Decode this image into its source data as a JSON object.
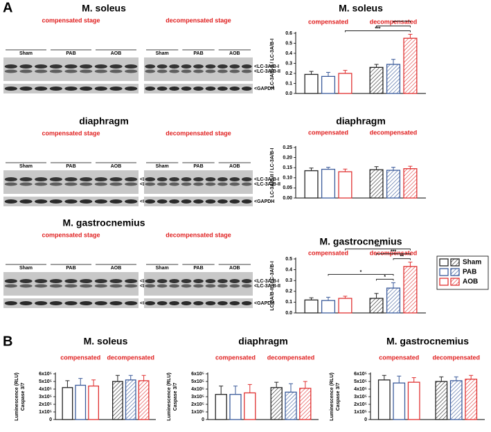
{
  "panels": [
    "A",
    "B"
  ],
  "blots": [
    {
      "title": "M. soleus",
      "panels": [
        {
          "stage": "compensated stage",
          "groups": [
            "Sham",
            "PAB",
            "AOB"
          ]
        },
        {
          "stage": "decompensated stage",
          "groups": [
            "Sham",
            "PAB",
            "AOB"
          ],
          "bands": [
            "<LC-3A/B-I",
            "<LC-3A/B-II"
          ],
          "control": "<GAPDH"
        }
      ]
    },
    {
      "title": "diaphragm",
      "panels": [
        {
          "stage": "compensated stage",
          "groups": [
            "Sham",
            "PAB",
            "AOB"
          ],
          "bands": [
            "<LC-3A/B-I",
            "<LC-3A/B-II"
          ],
          "control": "<GAPDH"
        },
        {
          "stage": "decompensated stage",
          "groups": [
            "Sham",
            "PAB",
            "AOB"
          ],
          "bands": [
            "<LC-3A/B-I",
            "<LC-3A/B-II"
          ],
          "control": "<GAPDH"
        }
      ]
    },
    {
      "title": "M. gastrocnemius",
      "panels": [
        {
          "stage": "compensated stage",
          "groups": [
            "Sham",
            "PAB",
            "AOB"
          ],
          "bands": [
            "<LC-3A/B-I",
            "<LC-3A/B-II"
          ],
          "control": "<GAPDH"
        },
        {
          "stage": "decompensated stage",
          "groups": [
            "Sham",
            "PAB",
            "AOB"
          ],
          "bands": [
            "<LC-3A/B-I",
            "<LC-3A/B-II"
          ],
          "control": "<GAPDH"
        }
      ]
    }
  ],
  "chart_data": [
    {
      "type": "bar",
      "title": "M. soleus",
      "ylabel": [
        "LC-3A/B-II / LC-3A/B-I"
      ],
      "categories": [
        "compensated",
        "decompensated"
      ],
      "hatch": [
        false,
        true
      ],
      "ylim": [
        0,
        0.6
      ],
      "yticks": [
        {
          "value": 0,
          "label": "0.0"
        },
        0.1,
        0.2,
        0.3,
        0.4,
        0.5,
        0.6
      ],
      "series": [
        {
          "color": "#222222",
          "values": [
            0.19,
            0.26
          ],
          "errors": [
            0.03,
            0.03
          ]
        },
        {
          "color": "#3a5a9a",
          "values": [
            0.17,
            0.29
          ],
          "errors": [
            0.04,
            0.05
          ]
        },
        {
          "color": "#e03030",
          "values": [
            0.2,
            0.55
          ],
          "errors": [
            0.03,
            0.04
          ]
        }
      ],
      "brackets": [
        {
          "label": "***",
          "from": [
            0,
            2
          ],
          "to": [
            1,
            2
          ]
        },
        {
          "from": [
            1,
            0
          ],
          "to": [
            1,
            2
          ]
        },
        {
          "from": [
            1,
            1
          ],
          "to": [
            1,
            2
          ]
        }
      ]
    },
    {
      "type": "bar",
      "title": "diaphragm",
      "ylabel": [
        "LC-3A/B-II / LC-3A/B-I"
      ],
      "categories": [
        "compensated",
        "decompensated"
      ],
      "hatch": [
        false,
        true
      ],
      "ylim": [
        0,
        0.25
      ],
      "yticks": [
        {
          "value": 0,
          "label": "0.00"
        },
        0.05,
        {
          "value": 0.1,
          "label": "0.10"
        },
        0.15,
        {
          "value": 0.2,
          "label": "0.20"
        },
        0.25
      ],
      "series": [
        {
          "color": "#222222",
          "values": [
            0.135,
            0.14
          ],
          "errors": [
            0.013,
            0.015
          ]
        },
        {
          "color": "#3a5a9a",
          "values": [
            0.142,
            0.137
          ],
          "errors": [
            0.01,
            0.015
          ]
        },
        {
          "color": "#e03030",
          "values": [
            0.13,
            0.145
          ],
          "errors": [
            0.013,
            0.012
          ]
        }
      ]
    },
    {
      "type": "bar",
      "title": "M. gastrocnemius",
      "ylabel": [
        "LC-3A/B-II / LC-3A/B-I"
      ],
      "categories": [
        "compensated",
        "decompensated"
      ],
      "hatch": [
        false,
        true
      ],
      "ylim": [
        0,
        0.5
      ],
      "yticks": [
        {
          "value": 0,
          "label": "0.0"
        },
        0.1,
        0.2,
        0.3,
        0.4,
        0.5
      ],
      "legend": "right",
      "series": [
        {
          "name": "Sham",
          "color": "#222222",
          "values": [
            0.12,
            0.135
          ],
          "errors": [
            0.02,
            0.045
          ]
        },
        {
          "name": "PAB",
          "color": "#3a5a9a",
          "values": [
            0.115,
            0.23
          ],
          "errors": [
            0.03,
            0.05
          ]
        },
        {
          "name": "AOB",
          "color": "#e03030",
          "values": [
            0.135,
            0.43
          ],
          "errors": [
            0.02,
            0.04
          ]
        }
      ],
      "brackets": [
        {
          "label": "*",
          "from": [
            1,
            0
          ],
          "to": [
            1,
            1
          ]
        },
        {
          "label": "*",
          "from": [
            0,
            1
          ],
          "to": [
            1,
            1
          ]
        },
        {
          "label": "**",
          "from": [
            1,
            1
          ],
          "to": [
            1,
            2
          ]
        },
        {
          "label": "***",
          "from": [
            1,
            0
          ],
          "to": [
            1,
            2
          ]
        },
        {
          "label": "***",
          "from": [
            0,
            2
          ],
          "to": [
            1,
            2
          ]
        }
      ]
    },
    {
      "type": "bar",
      "title": "M. soleus",
      "ylabel": [
        "Luminescence (RLU)",
        "Caspase 3/7"
      ],
      "categories": [
        "compensated",
        "decompensated"
      ],
      "hatch": [
        false,
        true
      ],
      "ylim": [
        0,
        600000
      ],
      "yticks": [
        0,
        {
          "value": 100000,
          "label": "1x10⁵"
        },
        {
          "value": 200000,
          "label": "2x10⁵"
        },
        {
          "value": 300000,
          "label": "3x10⁵"
        },
        {
          "value": 400000,
          "label": "4x10⁵"
        },
        {
          "value": 500000,
          "label": "5x10⁵"
        },
        {
          "value": 600000,
          "label": "6x10⁵"
        }
      ],
      "series": [
        {
          "color": "#222222",
          "values": [
            420000,
            500000
          ],
          "errors": [
            90000,
            80000
          ]
        },
        {
          "color": "#3a5a9a",
          "values": [
            450000,
            520000
          ],
          "errors": [
            90000,
            60000
          ]
        },
        {
          "color": "#e03030",
          "values": [
            440000,
            510000
          ],
          "errors": [
            80000,
            70000
          ]
        }
      ]
    },
    {
      "type": "bar",
      "title": "diaphragm",
      "ylabel": [
        "Luminescence (RLU)",
        "Caspase 3/7"
      ],
      "categories": [
        "compensated",
        "decompensated"
      ],
      "hatch": [
        false,
        true
      ],
      "ylim": [
        0,
        600000
      ],
      "yticks": [
        0,
        {
          "value": 100000,
          "label": "1x10⁵"
        },
        {
          "value": 200000,
          "label": "2x10⁵"
        },
        {
          "value": 300000,
          "label": "3x10⁵"
        },
        {
          "value": 400000,
          "label": "4x10⁵"
        },
        {
          "value": 500000,
          "label": "5x10⁵"
        },
        {
          "value": 600000,
          "label": "6x10⁵"
        }
      ],
      "series": [
        {
          "color": "#222222",
          "values": [
            330000,
            420000
          ],
          "errors": [
            110000,
            70000
          ]
        },
        {
          "color": "#3a5a9a",
          "values": [
            330000,
            360000
          ],
          "errors": [
            110000,
            110000
          ]
        },
        {
          "color": "#e03030",
          "values": [
            350000,
            410000
          ],
          "errors": [
            110000,
            90000
          ]
        }
      ]
    },
    {
      "type": "bar",
      "title": "M. gastrocnemius",
      "ylabel": [
        "Luminescence (RLU)",
        "Caspase 3/7"
      ],
      "categories": [
        "compensated",
        "decompensated"
      ],
      "hatch": [
        false,
        true
      ],
      "ylim": [
        0,
        600000
      ],
      "yticks": [
        0,
        {
          "value": 100000,
          "label": "1x10⁵"
        },
        {
          "value": 200000,
          "label": "2x10⁵"
        },
        {
          "value": 300000,
          "label": "3x10⁵"
        },
        {
          "value": 400000,
          "label": "4x10⁵"
        },
        {
          "value": 500000,
          "label": "5x10⁵"
        },
        {
          "value": 600000,
          "label": "6x10⁵"
        }
      ],
      "series": [
        {
          "color": "#222222",
          "values": [
            520000,
            500000
          ],
          "errors": [
            60000,
            60000
          ]
        },
        {
          "color": "#3a5a9a",
          "values": [
            480000,
            510000
          ],
          "errors": [
            90000,
            50000
          ]
        },
        {
          "color": "#e03030",
          "values": [
            490000,
            530000
          ],
          "errors": [
            60000,
            50000
          ]
        }
      ]
    }
  ]
}
